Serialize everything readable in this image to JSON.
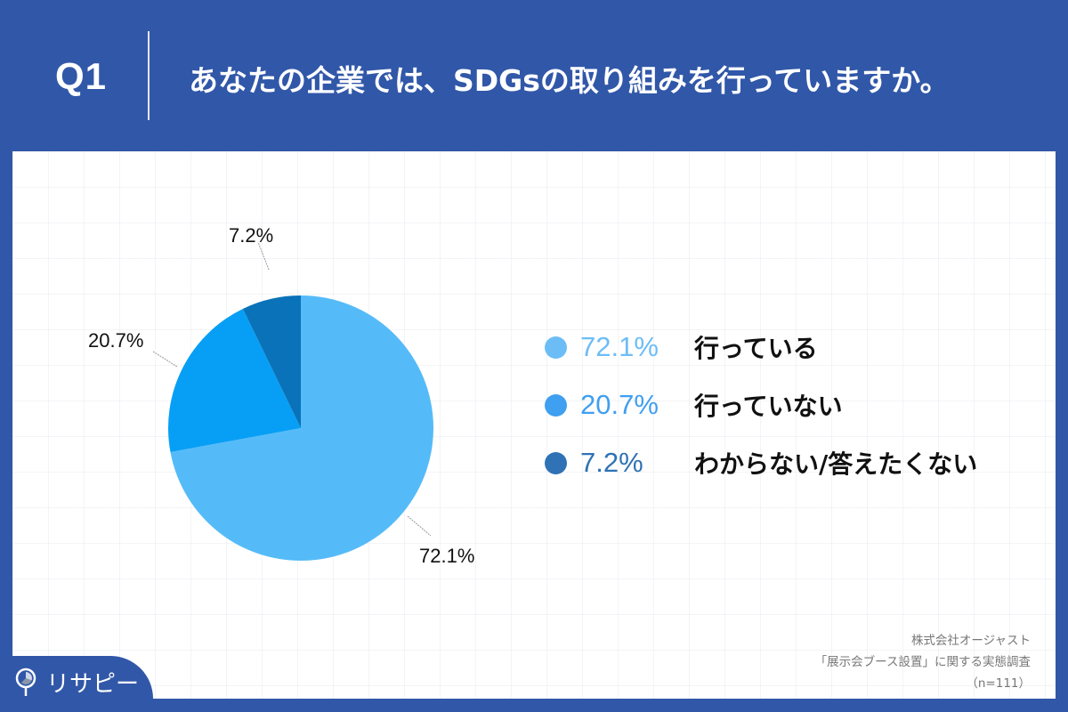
{
  "header": {
    "question_number": "Q1",
    "question_text": "あなたの企業では、SDGsの取り組みを行っていますか。"
  },
  "colors": {
    "background": "#3157a8",
    "slice_yes": "#55bbf8",
    "slice_no": "#079ff5",
    "slice_unknown": "#0a72b8",
    "legend_yes": "#6cbdf6",
    "legend_no": "#3f9ff0",
    "legend_unknown": "#2f72b5"
  },
  "chart_data": {
    "type": "pie",
    "title": "あなたの企業では、SDGsの取り組みを行っていますか。",
    "categories": [
      "行っている",
      "行っていない",
      "わからない/答えたくない"
    ],
    "values": [
      72.1,
      20.7,
      7.2
    ],
    "labels": [
      "72.1%",
      "20.7%",
      "7.2%"
    ],
    "start_angle": "12 o'clock, clockwise",
    "legend_position": "right",
    "sample_size": "n=111"
  },
  "pie_labels": {
    "yes": "72.1%",
    "no": "20.7%",
    "unknown": "7.2%"
  },
  "legend": [
    {
      "pct": "72.1%",
      "label": "行っている"
    },
    {
      "pct": "20.7%",
      "label": "行っていない"
    },
    {
      "pct": "7.2%",
      "label": "わからない/答えたくない"
    }
  ],
  "source": {
    "line1": "株式会社オージャスト",
    "line2": "「展示会ブース設置」に関する実態調査",
    "line3": "（n=111）"
  },
  "logo": {
    "text": "リサピー"
  }
}
